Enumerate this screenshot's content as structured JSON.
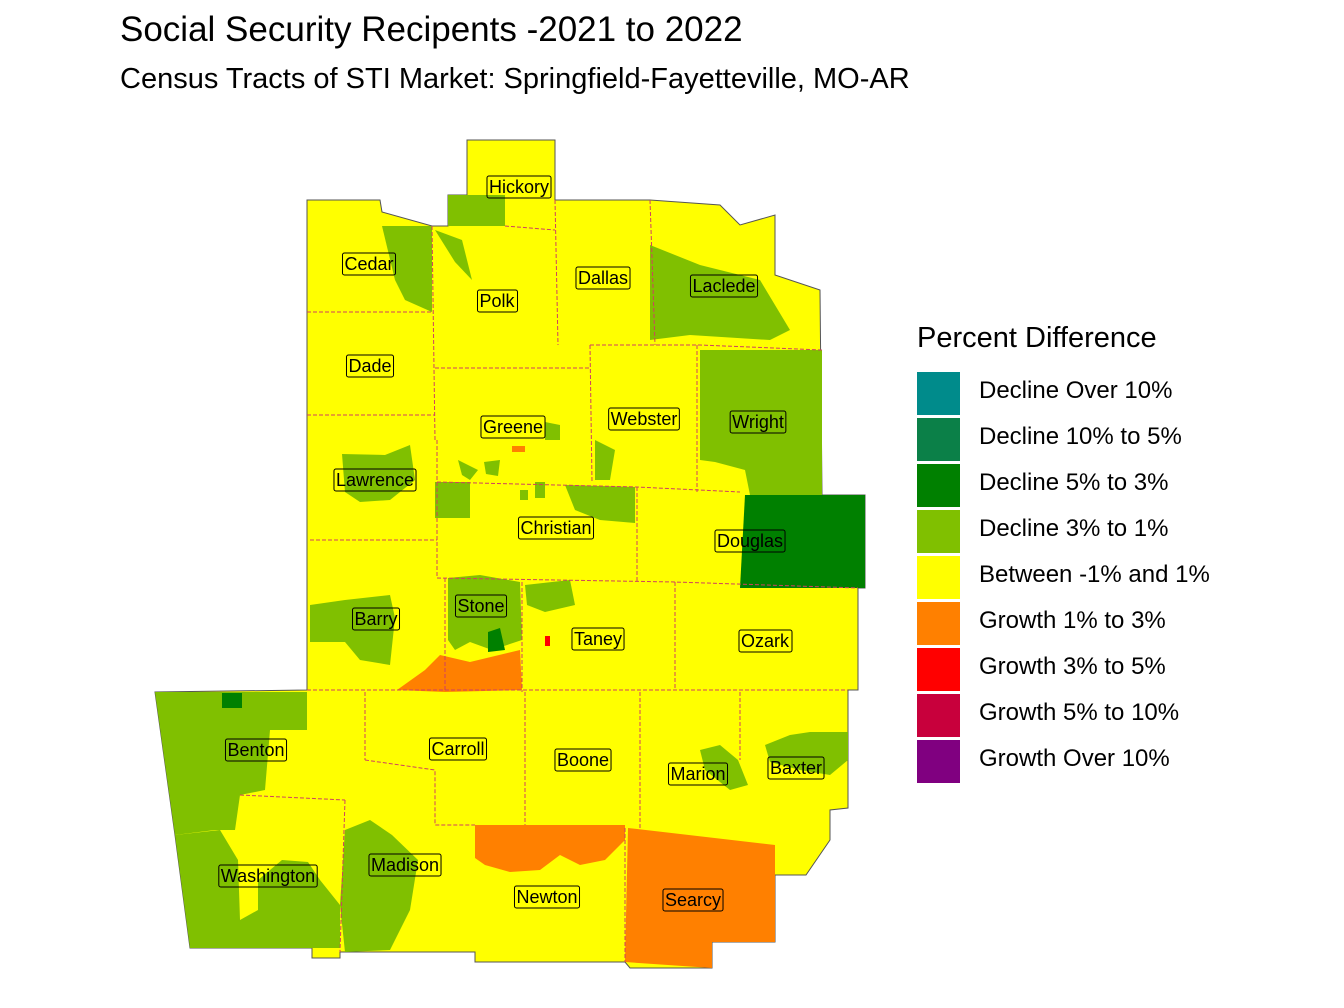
{
  "title": "Social Security Recipents -2021 to 2022",
  "subtitle": "Census Tracts of STI Market: Springfield-Fayetteville, MO-AR",
  "legend": {
    "title": "Percent Difference",
    "items": [
      {
        "label": "Decline Over 10%",
        "color": "#008b8b"
      },
      {
        "label": "Decline 10% to 5%",
        "color": "#0b8048"
      },
      {
        "label": "Decline 5% to 3%",
        "color": "#008000"
      },
      {
        "label": "Decline 3% to 1%",
        "color": "#80c000"
      },
      {
        "label": "Between -1% and 1%",
        "color": "#ffff00"
      },
      {
        "label": "Growth 1% to 3%",
        "color": "#ff8000"
      },
      {
        "label": "Growth 3% to 5%",
        "color": "#ff0000"
      },
      {
        "label": "Growth 5% to 10%",
        "color": "#c8003c"
      },
      {
        "label": "Growth Over 10%",
        "color": "#800080"
      }
    ]
  },
  "counties": [
    {
      "name": "Hickory"
    },
    {
      "name": "Cedar"
    },
    {
      "name": "Polk"
    },
    {
      "name": "Dallas"
    },
    {
      "name": "Laclede"
    },
    {
      "name": "Dade"
    },
    {
      "name": "Webster"
    },
    {
      "name": "Wright"
    },
    {
      "name": "Greene"
    },
    {
      "name": "Lawrence"
    },
    {
      "name": "Christian"
    },
    {
      "name": "Douglas"
    },
    {
      "name": "Stone"
    },
    {
      "name": "Barry"
    },
    {
      "name": "Taney"
    },
    {
      "name": "Ozark"
    },
    {
      "name": "Benton"
    },
    {
      "name": "Carroll"
    },
    {
      "name": "Boone"
    },
    {
      "name": "Marion"
    },
    {
      "name": "Baxter"
    },
    {
      "name": "Washington"
    },
    {
      "name": "Madison"
    },
    {
      "name": "Newton"
    },
    {
      "name": "Searcy"
    }
  ]
}
